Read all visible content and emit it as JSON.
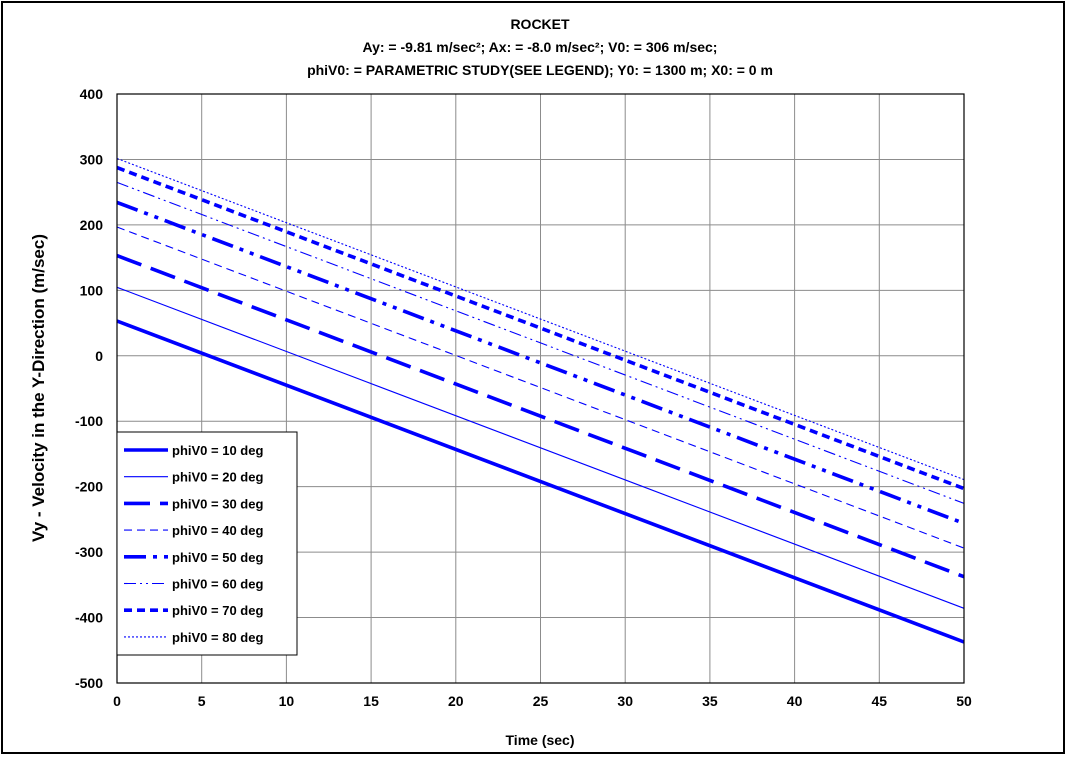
{
  "chart_data": {
    "type": "line",
    "title": "ROCKET",
    "subtitle_lines": [
      "Ay:  = -9.81 m/sec²; Ax:  = -8.0 m/sec²; V0:  = 306 m/sec;",
      "phiV0:  = PARAMETRIC STUDY(SEE LEGEND); Y0:  = 1300 m; X0:  = 0 m"
    ],
    "xlabel": "Time (sec)",
    "ylabel": "Vy - Velocity in the Y-Direction (m/sec)",
    "xlim": [
      0,
      50
    ],
    "ylim": [
      -500,
      400
    ],
    "xticks": [
      0,
      5,
      10,
      15,
      20,
      25,
      30,
      35,
      40,
      45,
      50
    ],
    "yticks": [
      -500,
      -400,
      -300,
      -200,
      -100,
      0,
      100,
      200,
      300,
      400
    ],
    "grid": true,
    "legend_position": "bottom-left",
    "line_color": "#0000FF",
    "series": [
      {
        "name": "phiV0 = 10 deg",
        "style": "solid-thick",
        "x": [
          0,
          50
        ],
        "y": [
          53.1,
          -437.4
        ]
      },
      {
        "name": "phiV0 = 20 deg",
        "style": "solid-thin",
        "x": [
          0,
          50
        ],
        "y": [
          104.7,
          -385.9
        ]
      },
      {
        "name": "phiV0 = 30 deg",
        "style": "long-dash-thick",
        "x": [
          0,
          50
        ],
        "y": [
          153.0,
          -337.5
        ]
      },
      {
        "name": "phiV0 = 40 deg",
        "style": "dash-thin",
        "x": [
          0,
          50
        ],
        "y": [
          196.7,
          -293.8
        ]
      },
      {
        "name": "phiV0 = 50 deg",
        "style": "dash-dot-dot-thick",
        "x": [
          0,
          50
        ],
        "y": [
          234.4,
          -256.1
        ]
      },
      {
        "name": "phiV0 = 60 deg",
        "style": "dash-dot-dot-thin",
        "x": [
          0,
          50
        ],
        "y": [
          265.0,
          -225.5
        ]
      },
      {
        "name": "phiV0 = 70 deg",
        "style": "short-dash-thick",
        "x": [
          0,
          50
        ],
        "y": [
          287.5,
          -203.0
        ]
      },
      {
        "name": "phiV0 = 80 deg",
        "style": "dotted-thin",
        "x": [
          0,
          50
        ],
        "y": [
          301.4,
          -189.2
        ]
      }
    ]
  }
}
